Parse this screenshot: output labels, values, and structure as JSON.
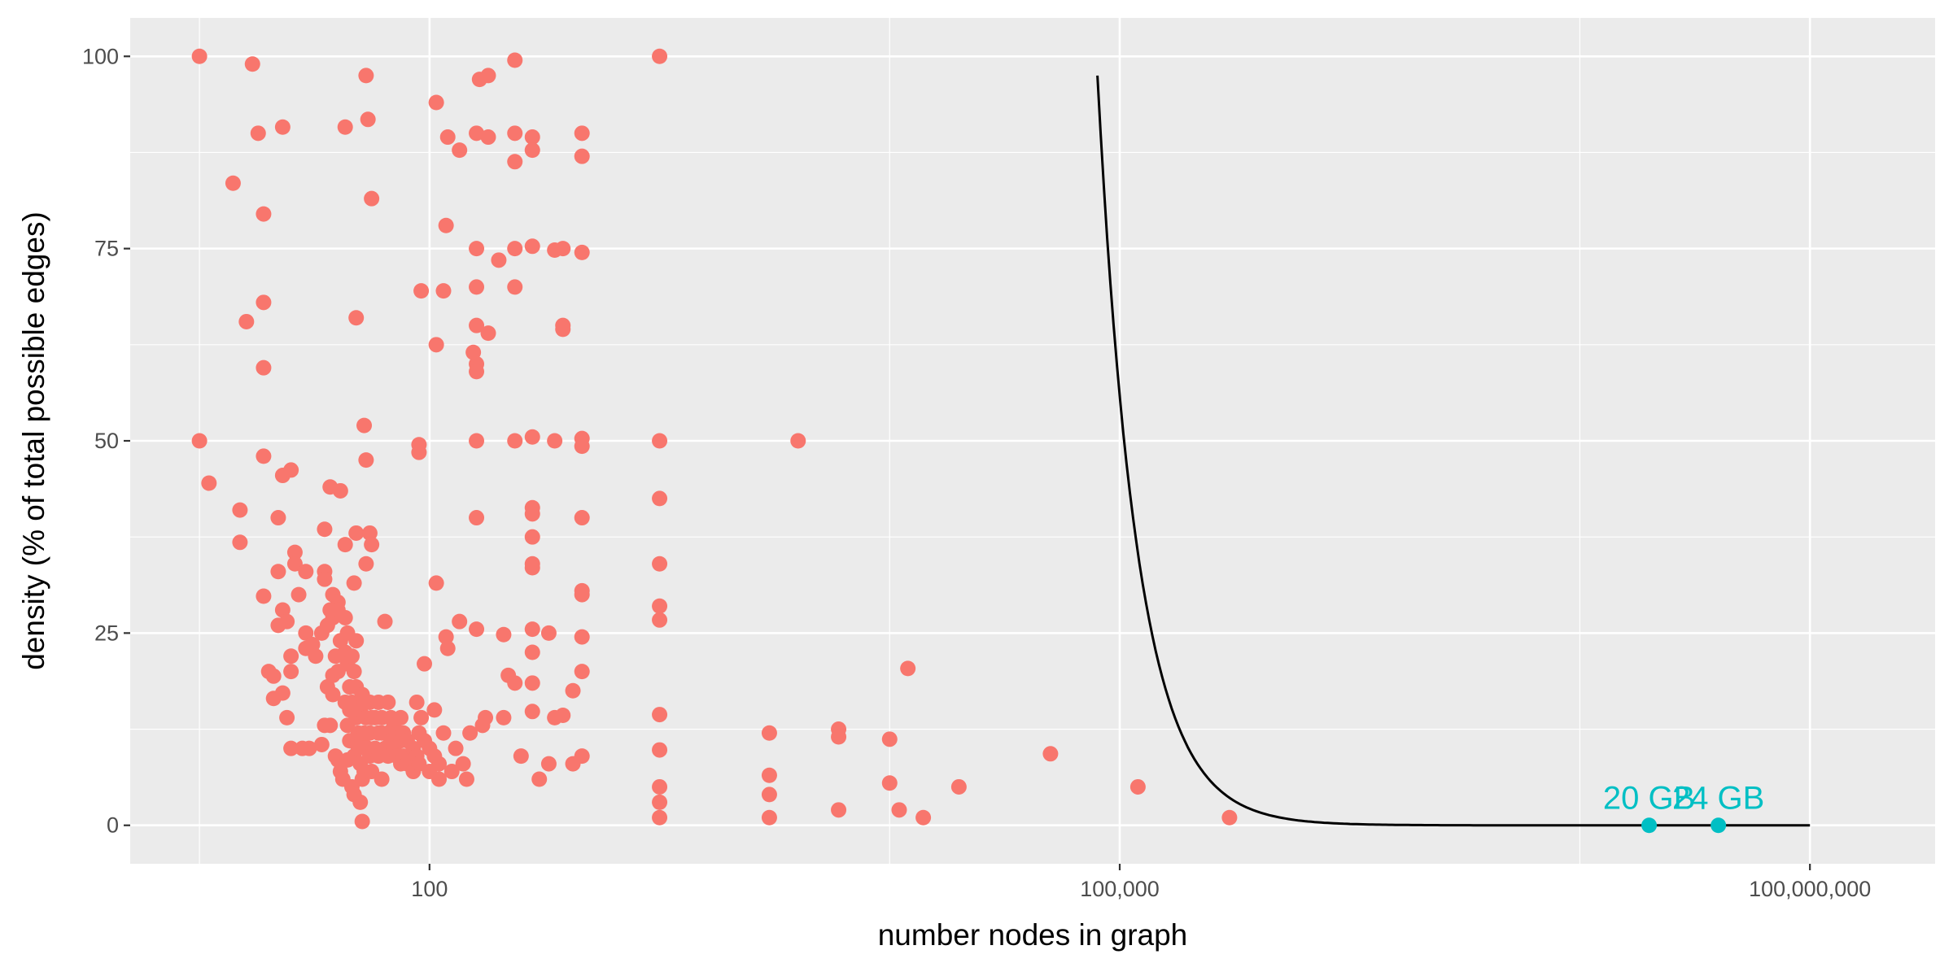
{
  "chart_data": {
    "type": "scatter",
    "title": "",
    "xlabel": "number nodes in graph",
    "ylabel": "density (% of total possible edges)",
    "x_scale": "log10",
    "xlim": [
      5,
      350000000
    ],
    "ylim": [
      -5,
      105
    ],
    "x_ticks": [
      {
        "value": 100,
        "label": "100"
      },
      {
        "value": 100000,
        "label": "100,000"
      },
      {
        "value": 100000000,
        "label": "100,000,000"
      }
    ],
    "y_ticks": [
      {
        "value": 0,
        "label": "0"
      },
      {
        "value": 25,
        "label": "25"
      },
      {
        "value": 50,
        "label": "50"
      },
      {
        "value": 75,
        "label": "75"
      },
      {
        "value": 100,
        "label": "100"
      }
    ],
    "grid": true,
    "colors": {
      "panel": "#ebebeb",
      "grid": "#ffffff",
      "points": "#f8766d",
      "highlight": "#00bfc4",
      "curve": "#000000"
    },
    "series": [
      {
        "values": [
          [
            10,
            100
          ],
          [
            10,
            50
          ],
          [
            11,
            44.5
          ],
          [
            14,
            83.5
          ],
          [
            15,
            41
          ],
          [
            15,
            36.8
          ],
          [
            16,
            65.5
          ],
          [
            17,
            99
          ],
          [
            18,
            90
          ],
          [
            19,
            79.5
          ],
          [
            19,
            68
          ],
          [
            19,
            59.5
          ],
          [
            19,
            48
          ],
          [
            19,
            29.8
          ],
          [
            20,
            20
          ],
          [
            21,
            19.4
          ],
          [
            21,
            16.5
          ],
          [
            22,
            33
          ],
          [
            22,
            40
          ],
          [
            22,
            26
          ],
          [
            23,
            90.8
          ],
          [
            23,
            45.5
          ],
          [
            23,
            28
          ],
          [
            23,
            17.2
          ],
          [
            24,
            26.5
          ],
          [
            24,
            14
          ],
          [
            25,
            46.2
          ],
          [
            25,
            22
          ],
          [
            25,
            20
          ],
          [
            25,
            10
          ],
          [
            26,
            35.5
          ],
          [
            26,
            34
          ],
          [
            27,
            30
          ],
          [
            28,
            10
          ],
          [
            29,
            33
          ],
          [
            29,
            25
          ],
          [
            29,
            23
          ],
          [
            30,
            10
          ],
          [
            31,
            23.5
          ],
          [
            32,
            22
          ],
          [
            34,
            25
          ],
          [
            34,
            10.5
          ],
          [
            35,
            38.5
          ],
          [
            35,
            33
          ],
          [
            35,
            32
          ],
          [
            35,
            13
          ],
          [
            36,
            26
          ],
          [
            36,
            18
          ],
          [
            37,
            44
          ],
          [
            37,
            28
          ],
          [
            37,
            13
          ],
          [
            38,
            30
          ],
          [
            38,
            27
          ],
          [
            38,
            19.5
          ],
          [
            38,
            17
          ],
          [
            39,
            22
          ],
          [
            39,
            9
          ],
          [
            40,
            29
          ],
          [
            40,
            28
          ],
          [
            40,
            20
          ],
          [
            40,
            8.5
          ],
          [
            41,
            43.5
          ],
          [
            41,
            24
          ],
          [
            41,
            7
          ],
          [
            42,
            6
          ],
          [
            43,
            27
          ],
          [
            43,
            22.5
          ],
          [
            43,
            16
          ],
          [
            43,
            36.5
          ],
          [
            43,
            90.8
          ],
          [
            44,
            25
          ],
          [
            44,
            21
          ],
          [
            44,
            13
          ],
          [
            44,
            8.5
          ],
          [
            45,
            18
          ],
          [
            45,
            15
          ],
          [
            45,
            11
          ],
          [
            46,
            22
          ],
          [
            46,
            16
          ],
          [
            46,
            5
          ],
          [
            47,
            31.5
          ],
          [
            47,
            20
          ],
          [
            47,
            9
          ],
          [
            47,
            4
          ],
          [
            48,
            38
          ],
          [
            48,
            24
          ],
          [
            48,
            18
          ],
          [
            48,
            14
          ],
          [
            48,
            66
          ],
          [
            49,
            12
          ],
          [
            49,
            10
          ],
          [
            50,
            15
          ],
          [
            50,
            8
          ],
          [
            50,
            3
          ],
          [
            51,
            17
          ],
          [
            51,
            11
          ],
          [
            51,
            6
          ],
          [
            51,
            0.5
          ],
          [
            52,
            52
          ],
          [
            52,
            16
          ],
          [
            52,
            12
          ],
          [
            52,
            7
          ],
          [
            53,
            97.5
          ],
          [
            53,
            47.5
          ],
          [
            53,
            34
          ],
          [
            53,
            14
          ],
          [
            54,
            91.8
          ],
          [
            54,
            10
          ],
          [
            55,
            38
          ],
          [
            55,
            16
          ],
          [
            55,
            12
          ],
          [
            55,
            9
          ],
          [
            56,
            81.5
          ],
          [
            56,
            36.5
          ],
          [
            56,
            14
          ],
          [
            56,
            7
          ],
          [
            58,
            14
          ],
          [
            58,
            10
          ],
          [
            60,
            16
          ],
          [
            60,
            12
          ],
          [
            60,
            9
          ],
          [
            62,
            14
          ],
          [
            62,
            12
          ],
          [
            62,
            6
          ],
          [
            64,
            26.5
          ],
          [
            64,
            10
          ],
          [
            66,
            16
          ],
          [
            66,
            12
          ],
          [
            66,
            9
          ],
          [
            68,
            14
          ],
          [
            68,
            11
          ],
          [
            70,
            13
          ],
          [
            70,
            10
          ],
          [
            72,
            12
          ],
          [
            72,
            9
          ],
          [
            75,
            14
          ],
          [
            75,
            11
          ],
          [
            75,
            8
          ],
          [
            77,
            12
          ],
          [
            77,
            9
          ],
          [
            80,
            11
          ],
          [
            80,
            8
          ],
          [
            85,
            10
          ],
          [
            85,
            7
          ],
          [
            88,
            16
          ],
          [
            88,
            9
          ],
          [
            90,
            49.5
          ],
          [
            90,
            48.5
          ],
          [
            90,
            12
          ],
          [
            90,
            8
          ],
          [
            92,
            69.5
          ],
          [
            92,
            14
          ],
          [
            95,
            21
          ],
          [
            95,
            11
          ],
          [
            100,
            10
          ],
          [
            100,
            7
          ],
          [
            105,
            15
          ],
          [
            105,
            9
          ],
          [
            107,
            94
          ],
          [
            107,
            62.5
          ],
          [
            107,
            31.5
          ],
          [
            110,
            8
          ],
          [
            110,
            6
          ],
          [
            115,
            69.5
          ],
          [
            115,
            12
          ],
          [
            118,
            78
          ],
          [
            118,
            24.5
          ],
          [
            120,
            89.5
          ],
          [
            120,
            23
          ],
          [
            125,
            7
          ],
          [
            130,
            10
          ],
          [
            135,
            26.5
          ],
          [
            135,
            87.8
          ],
          [
            140,
            8
          ],
          [
            145,
            6
          ],
          [
            150,
            12
          ],
          [
            155,
            61.5
          ],
          [
            160,
            90
          ],
          [
            160,
            75
          ],
          [
            160,
            70
          ],
          [
            160,
            65
          ],
          [
            160,
            60
          ],
          [
            160,
            59
          ],
          [
            160,
            50
          ],
          [
            160,
            40
          ],
          [
            160,
            25.5
          ],
          [
            165,
            97
          ],
          [
            170,
            13
          ],
          [
            175,
            14
          ],
          [
            180,
            64
          ],
          [
            180,
            97.5
          ],
          [
            180,
            89.5
          ],
          [
            200,
            73.5
          ],
          [
            210,
            24.8
          ],
          [
            210,
            14
          ],
          [
            220,
            19.5
          ],
          [
            235,
            99.5
          ],
          [
            235,
            90
          ],
          [
            235,
            86.3
          ],
          [
            235,
            75
          ],
          [
            235,
            70
          ],
          [
            235,
            50
          ],
          [
            235,
            18.5
          ],
          [
            250,
            9
          ],
          [
            280,
            89.5
          ],
          [
            280,
            87.8
          ],
          [
            280,
            75.3
          ],
          [
            280,
            50.5
          ],
          [
            280,
            41.3
          ],
          [
            280,
            40.5
          ],
          [
            280,
            37.5
          ],
          [
            280,
            34
          ],
          [
            280,
            33.5
          ],
          [
            280,
            25.5
          ],
          [
            280,
            22.5
          ],
          [
            280,
            18.5
          ],
          [
            280,
            14.8
          ],
          [
            300,
            6
          ],
          [
            330,
            8
          ],
          [
            330,
            25
          ],
          [
            350,
            50
          ],
          [
            350,
            74.8
          ],
          [
            350,
            14
          ],
          [
            380,
            75
          ],
          [
            380,
            65
          ],
          [
            380,
            64.5
          ],
          [
            380,
            14.3
          ],
          [
            420,
            17.5
          ],
          [
            420,
            8
          ],
          [
            460,
            90
          ],
          [
            460,
            87
          ],
          [
            460,
            74.5
          ],
          [
            460,
            50.3
          ],
          [
            460,
            49.3
          ],
          [
            460,
            40
          ],
          [
            460,
            30.5
          ],
          [
            460,
            30
          ],
          [
            460,
            24.5
          ],
          [
            460,
            20
          ],
          [
            460,
            9
          ],
          [
            1000,
            100
          ],
          [
            1000,
            50
          ],
          [
            1000,
            42.5
          ],
          [
            1000,
            34
          ],
          [
            1000,
            28.5
          ],
          [
            1000,
            26.7
          ],
          [
            1000,
            14.4
          ],
          [
            1000,
            9.8
          ],
          [
            1000,
            5
          ],
          [
            1000,
            3
          ],
          [
            1000,
            1
          ],
          [
            3000,
            12
          ],
          [
            3000,
            6.5
          ],
          [
            3000,
            4
          ],
          [
            3000,
            1
          ],
          [
            4000,
            50
          ],
          [
            6000,
            12.5
          ],
          [
            6000,
            11.5
          ],
          [
            6000,
            2
          ],
          [
            10000,
            11.2
          ],
          [
            10000,
            5.5
          ],
          [
            11000,
            2
          ],
          [
            12000,
            20.4
          ],
          [
            14000,
            1
          ],
          [
            20000,
            5
          ],
          [
            50000,
            9.3
          ],
          [
            120000,
            5
          ],
          [
            300000,
            1
          ]
        ]
      }
    ],
    "highlight_points": [
      {
        "x": 20000000,
        "y": 0,
        "label": "20 GB"
      },
      {
        "x": 40000000,
        "y": 0,
        "label": "24 GB"
      }
    ],
    "curve": {
      "x_start": 80000,
      "x_end": 100000000,
      "y_start": 97.5,
      "y_end": 0
    }
  }
}
